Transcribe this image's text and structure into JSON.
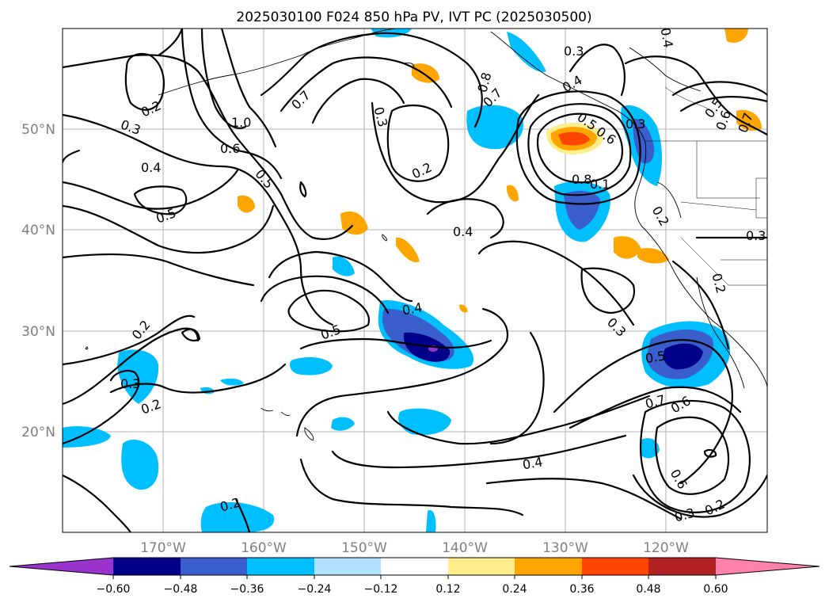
{
  "title": "2025030100 F024 850 hPa PV, IVT PC (2025030500)",
  "map": {
    "lat_labels": [
      "50°N",
      "40°N",
      "30°N",
      "20°N"
    ],
    "lon_labels": [
      "170°W",
      "160°W",
      "150°W",
      "140°W",
      "130°W",
      "120°W"
    ],
    "extent": {
      "lon": [
        -180,
        -110
      ],
      "lat": [
        10,
        60
      ]
    }
  },
  "colorbar": {
    "ticks": [
      "−0.60",
      "−0.48",
      "−0.36",
      "−0.24",
      "−0.12",
      "0.12",
      "0.24",
      "0.36",
      "0.48",
      "0.60"
    ],
    "colors": [
      "#9a32cd",
      "#00008b",
      "#3a5fcd",
      "#00bfff",
      "#b0e2ff",
      "#ffffff",
      "#ffec8b",
      "#ffa500",
      "#ff4500",
      "#b22222",
      "#ff82ab"
    ]
  },
  "contour_labels": [
    "0.2",
    "0.3",
    "0.4",
    "0.5",
    "1.0",
    "0.6",
    "0.5",
    "0.7",
    "0.3",
    "0.2",
    "0.8",
    "0.7",
    "0.3",
    "0.4",
    "0.5",
    "0.6",
    "0.7",
    "0.5",
    "0.3",
    "0.6",
    "0.8",
    "0.1",
    "0.4",
    "0.4",
    "0.5",
    "0.3",
    "0.2",
    "0.3",
    "0.2",
    "0.5",
    "0.7",
    "0.6",
    "0.4",
    "0.6",
    "0.3",
    "0.2",
    "0.2",
    "0.2",
    "0.3",
    "0.2",
    "0.4"
  ]
}
